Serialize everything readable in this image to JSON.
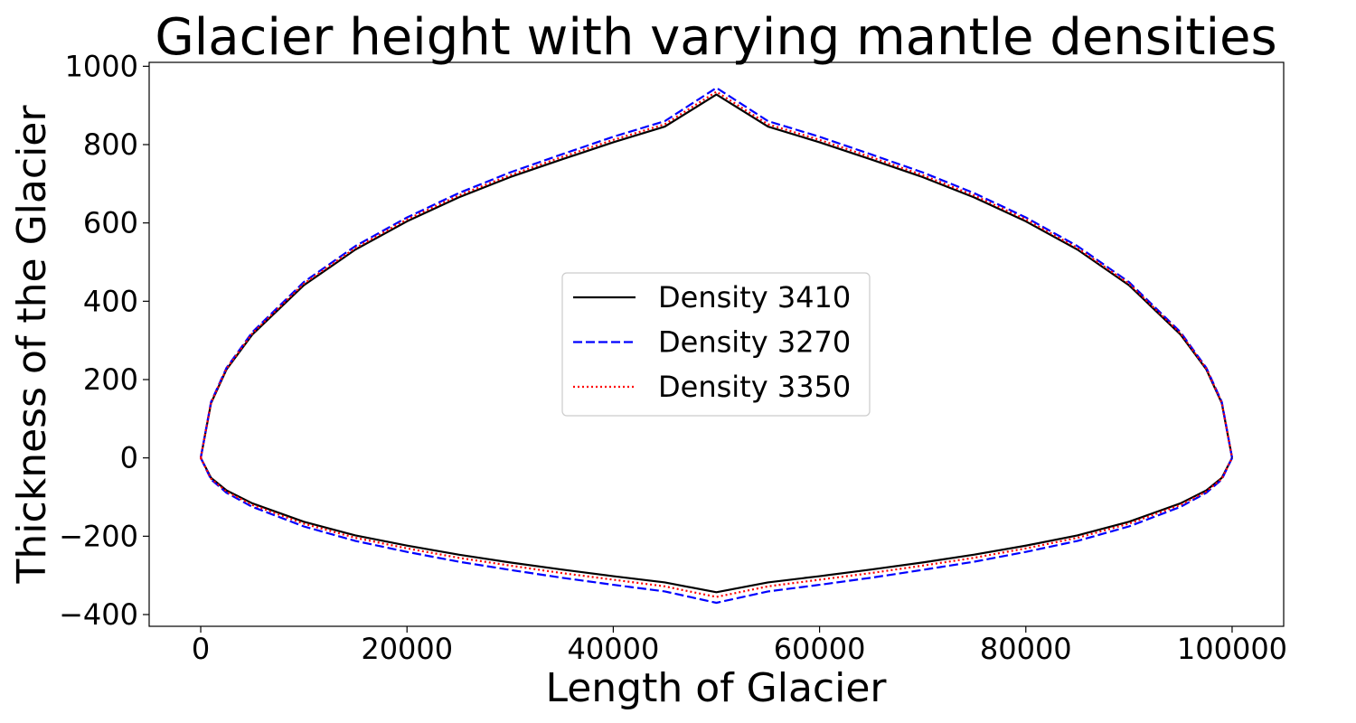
{
  "chart_data": {
    "type": "line",
    "title": "Glacier height with varying mantle densities",
    "xlabel": "Length of Glacier",
    "ylabel": "Thickness of the Glacier",
    "xlim": [
      -5000,
      105000
    ],
    "ylim": [
      -430,
      1010
    ],
    "xticks": [
      0,
      20000,
      40000,
      60000,
      80000,
      100000
    ],
    "xtick_labels": [
      "0",
      "20000",
      "40000",
      "60000",
      "80000",
      "100000"
    ],
    "yticks": [
      -400,
      -200,
      0,
      200,
      400,
      600,
      800,
      1000
    ],
    "ytick_labels": [
      "−400",
      "−200",
      "0",
      "200",
      "400",
      "600",
      "800",
      "1000"
    ],
    "grid": false,
    "legend_position": "center",
    "x": [
      0,
      1000,
      2500,
      5000,
      10000,
      15000,
      20000,
      25000,
      30000,
      35000,
      40000,
      45000,
      50000,
      55000,
      60000,
      65000,
      70000,
      75000,
      80000,
      85000,
      90000,
      95000,
      97500,
      99000,
      100000
    ],
    "series": [
      {
        "name": "Density 3410",
        "color": "#000000",
        "dash": "solid",
        "upper": [
          0,
          140,
          226,
          315,
          441,
          532,
          604,
          665,
          717,
          762,
          806,
          846,
          928,
          846,
          806,
          762,
          717,
          665,
          604,
          532,
          441,
          315,
          226,
          140,
          0
        ],
        "lower": [
          0,
          -51,
          -83,
          -116,
          -163,
          -198,
          -224,
          -247,
          -267,
          -285,
          -302,
          -318,
          -343,
          -318,
          -302,
          -285,
          -267,
          -247,
          -224,
          -198,
          -163,
          -116,
          -83,
          -51,
          0
        ]
      },
      {
        "name": "Density 3270",
        "color": "#0000ff",
        "dash": "dashed",
        "upper": [
          0,
          143,
          230,
          321,
          449,
          541,
          614,
          676,
          729,
          775,
          820,
          860,
          945,
          860,
          820,
          775,
          729,
          676,
          614,
          541,
          449,
          321,
          230,
          143,
          0
        ],
        "lower": [
          0,
          -55,
          -89,
          -125,
          -175,
          -212,
          -240,
          -265,
          -286,
          -306,
          -324,
          -341,
          -370,
          -341,
          -324,
          -306,
          -286,
          -265,
          -240,
          -212,
          -175,
          -125,
          -89,
          -55,
          0
        ]
      },
      {
        "name": "Density 3350",
        "color": "#ff0000",
        "dash": "dotted",
        "upper": [
          0,
          141,
          228,
          318,
          445,
          536,
          609,
          670,
          722,
          768,
          812,
          852,
          935,
          852,
          812,
          768,
          722,
          670,
          609,
          536,
          445,
          318,
          228,
          141,
          0
        ],
        "lower": [
          0,
          -53,
          -86,
          -120,
          -168,
          -204,
          -231,
          -255,
          -275,
          -294,
          -311,
          -328,
          -355,
          -328,
          -311,
          -294,
          -275,
          -255,
          -231,
          -204,
          -168,
          -120,
          -86,
          -53,
          0
        ]
      }
    ]
  }
}
